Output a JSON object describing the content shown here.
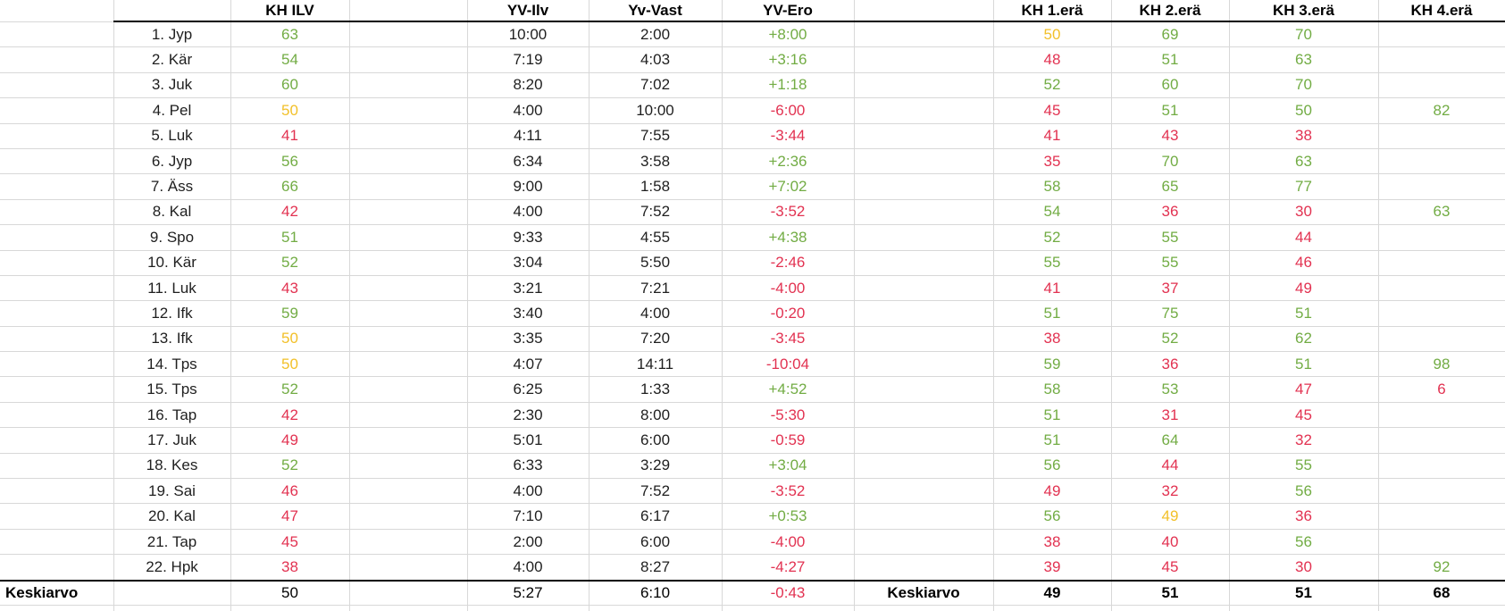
{
  "app": {
    "type": "spreadsheet-statistics-table",
    "language": "fi"
  },
  "colors": {
    "good": "#72ac44",
    "bad": "#e23251",
    "neutral": "#f2c029",
    "text": "#1f1f1f",
    "grid": "#d8d8d8",
    "border": "#000000",
    "background": "#ffffff"
  },
  "header": {
    "labels": [
      "",
      "",
      "KH ILV",
      "",
      "YV-Ilv",
      "Yv-Vast",
      "YV-Ero",
      "",
      "KH 1.erä",
      "KH 2.erä",
      "KH 3.erä",
      "KH 4.erä"
    ]
  },
  "rows": [
    {
      "name": "1. Jyp",
      "kh_ilv": {
        "v": "63",
        "c": "good"
      },
      "yv_ilv": "10:00",
      "yv_vast": "2:00",
      "yv_ero": {
        "v": "+8:00",
        "c": "good"
      },
      "era1": {
        "v": "50",
        "c": "neutral"
      },
      "era2": {
        "v": "69",
        "c": "good"
      },
      "era3": {
        "v": "70",
        "c": "good"
      },
      "era4": {
        "v": "",
        "c": ""
      }
    },
    {
      "name": "2. Kär",
      "kh_ilv": {
        "v": "54",
        "c": "good"
      },
      "yv_ilv": "7:19",
      "yv_vast": "4:03",
      "yv_ero": {
        "v": "+3:16",
        "c": "good"
      },
      "era1": {
        "v": "48",
        "c": "bad"
      },
      "era2": {
        "v": "51",
        "c": "good"
      },
      "era3": {
        "v": "63",
        "c": "good"
      },
      "era4": {
        "v": "",
        "c": ""
      }
    },
    {
      "name": "3. Juk",
      "kh_ilv": {
        "v": "60",
        "c": "good"
      },
      "yv_ilv": "8:20",
      "yv_vast": "7:02",
      "yv_ero": {
        "v": "+1:18",
        "c": "good"
      },
      "era1": {
        "v": "52",
        "c": "good"
      },
      "era2": {
        "v": "60",
        "c": "good"
      },
      "era3": {
        "v": "70",
        "c": "good"
      },
      "era4": {
        "v": "",
        "c": ""
      }
    },
    {
      "name": "4. Pel",
      "kh_ilv": {
        "v": "50",
        "c": "neutral"
      },
      "yv_ilv": "4:00",
      "yv_vast": "10:00",
      "yv_ero": {
        "v": "-6:00",
        "c": "bad"
      },
      "era1": {
        "v": "45",
        "c": "bad"
      },
      "era2": {
        "v": "51",
        "c": "good"
      },
      "era3": {
        "v": "50",
        "c": "good"
      },
      "era4": {
        "v": "82",
        "c": "good"
      }
    },
    {
      "name": "5. Luk",
      "kh_ilv": {
        "v": "41",
        "c": "bad"
      },
      "yv_ilv": "4:11",
      "yv_vast": "7:55",
      "yv_ero": {
        "v": "-3:44",
        "c": "bad"
      },
      "era1": {
        "v": "41",
        "c": "bad"
      },
      "era2": {
        "v": "43",
        "c": "bad"
      },
      "era3": {
        "v": "38",
        "c": "bad"
      },
      "era4": {
        "v": "",
        "c": ""
      }
    },
    {
      "name": "6. Jyp",
      "kh_ilv": {
        "v": "56",
        "c": "good"
      },
      "yv_ilv": "6:34",
      "yv_vast": "3:58",
      "yv_ero": {
        "v": "+2:36",
        "c": "good"
      },
      "era1": {
        "v": "35",
        "c": "bad"
      },
      "era2": {
        "v": "70",
        "c": "good"
      },
      "era3": {
        "v": "63",
        "c": "good"
      },
      "era4": {
        "v": "",
        "c": ""
      }
    },
    {
      "name": "7. Äss",
      "kh_ilv": {
        "v": "66",
        "c": "good"
      },
      "yv_ilv": "9:00",
      "yv_vast": "1:58",
      "yv_ero": {
        "v": "+7:02",
        "c": "good"
      },
      "era1": {
        "v": "58",
        "c": "good"
      },
      "era2": {
        "v": "65",
        "c": "good"
      },
      "era3": {
        "v": "77",
        "c": "good"
      },
      "era4": {
        "v": "",
        "c": ""
      }
    },
    {
      "name": "8. Kal",
      "kh_ilv": {
        "v": "42",
        "c": "bad"
      },
      "yv_ilv": "4:00",
      "yv_vast": "7:52",
      "yv_ero": {
        "v": "-3:52",
        "c": "bad"
      },
      "era1": {
        "v": "54",
        "c": "good"
      },
      "era2": {
        "v": "36",
        "c": "bad"
      },
      "era3": {
        "v": "30",
        "c": "bad"
      },
      "era4": {
        "v": "63",
        "c": "good"
      }
    },
    {
      "name": "9. Spo",
      "kh_ilv": {
        "v": "51",
        "c": "good"
      },
      "yv_ilv": "9:33",
      "yv_vast": "4:55",
      "yv_ero": {
        "v": "+4:38",
        "c": "good"
      },
      "era1": {
        "v": "52",
        "c": "good"
      },
      "era2": {
        "v": "55",
        "c": "good"
      },
      "era3": {
        "v": "44",
        "c": "bad"
      },
      "era4": {
        "v": "",
        "c": ""
      }
    },
    {
      "name": "10. Kär",
      "kh_ilv": {
        "v": "52",
        "c": "good"
      },
      "yv_ilv": "3:04",
      "yv_vast": "5:50",
      "yv_ero": {
        "v": "-2:46",
        "c": "bad"
      },
      "era1": {
        "v": "55",
        "c": "good"
      },
      "era2": {
        "v": "55",
        "c": "good"
      },
      "era3": {
        "v": "46",
        "c": "bad"
      },
      "era4": {
        "v": "",
        "c": ""
      }
    },
    {
      "name": "11. Luk",
      "kh_ilv": {
        "v": "43",
        "c": "bad"
      },
      "yv_ilv": "3:21",
      "yv_vast": "7:21",
      "yv_ero": {
        "v": "-4:00",
        "c": "bad"
      },
      "era1": {
        "v": "41",
        "c": "bad"
      },
      "era2": {
        "v": "37",
        "c": "bad"
      },
      "era3": {
        "v": "49",
        "c": "bad"
      },
      "era4": {
        "v": "",
        "c": ""
      }
    },
    {
      "name": "12. Ifk",
      "kh_ilv": {
        "v": "59",
        "c": "good"
      },
      "yv_ilv": "3:40",
      "yv_vast": "4:00",
      "yv_ero": {
        "v": "-0:20",
        "c": "bad"
      },
      "era1": {
        "v": "51",
        "c": "good"
      },
      "era2": {
        "v": "75",
        "c": "good"
      },
      "era3": {
        "v": "51",
        "c": "good"
      },
      "era4": {
        "v": "",
        "c": ""
      }
    },
    {
      "name": "13. Ifk",
      "kh_ilv": {
        "v": "50",
        "c": "neutral"
      },
      "yv_ilv": "3:35",
      "yv_vast": "7:20",
      "yv_ero": {
        "v": "-3:45",
        "c": "bad"
      },
      "era1": {
        "v": "38",
        "c": "bad"
      },
      "era2": {
        "v": "52",
        "c": "good"
      },
      "era3": {
        "v": "62",
        "c": "good"
      },
      "era4": {
        "v": "",
        "c": ""
      }
    },
    {
      "name": "14. Tps",
      "kh_ilv": {
        "v": "50",
        "c": "neutral"
      },
      "yv_ilv": "4:07",
      "yv_vast": "14:11",
      "yv_ero": {
        "v": "-10:04",
        "c": "bad"
      },
      "era1": {
        "v": "59",
        "c": "good"
      },
      "era2": {
        "v": "36",
        "c": "bad"
      },
      "era3": {
        "v": "51",
        "c": "good"
      },
      "era4": {
        "v": "98",
        "c": "good"
      }
    },
    {
      "name": "15. Tps",
      "kh_ilv": {
        "v": "52",
        "c": "good"
      },
      "yv_ilv": "6:25",
      "yv_vast": "1:33",
      "yv_ero": {
        "v": "+4:52",
        "c": "good"
      },
      "era1": {
        "v": "58",
        "c": "good"
      },
      "era2": {
        "v": "53",
        "c": "good"
      },
      "era3": {
        "v": "47",
        "c": "bad"
      },
      "era4": {
        "v": "6",
        "c": "bad"
      }
    },
    {
      "name": "16. Tap",
      "kh_ilv": {
        "v": "42",
        "c": "bad"
      },
      "yv_ilv": "2:30",
      "yv_vast": "8:00",
      "yv_ero": {
        "v": "-5:30",
        "c": "bad"
      },
      "era1": {
        "v": "51",
        "c": "good"
      },
      "era2": {
        "v": "31",
        "c": "bad"
      },
      "era3": {
        "v": "45",
        "c": "bad"
      },
      "era4": {
        "v": "",
        "c": ""
      }
    },
    {
      "name": "17. Juk",
      "kh_ilv": {
        "v": "49",
        "c": "bad"
      },
      "yv_ilv": "5:01",
      "yv_vast": "6:00",
      "yv_ero": {
        "v": "-0:59",
        "c": "bad"
      },
      "era1": {
        "v": "51",
        "c": "good"
      },
      "era2": {
        "v": "64",
        "c": "good"
      },
      "era3": {
        "v": "32",
        "c": "bad"
      },
      "era4": {
        "v": "",
        "c": ""
      }
    },
    {
      "name": "18. Kes",
      "kh_ilv": {
        "v": "52",
        "c": "good"
      },
      "yv_ilv": "6:33",
      "yv_vast": "3:29",
      "yv_ero": {
        "v": "+3:04",
        "c": "good"
      },
      "era1": {
        "v": "56",
        "c": "good"
      },
      "era2": {
        "v": "44",
        "c": "bad"
      },
      "era3": {
        "v": "55",
        "c": "good"
      },
      "era4": {
        "v": "",
        "c": ""
      }
    },
    {
      "name": "19. Sai",
      "kh_ilv": {
        "v": "46",
        "c": "bad"
      },
      "yv_ilv": "4:00",
      "yv_vast": "7:52",
      "yv_ero": {
        "v": "-3:52",
        "c": "bad"
      },
      "era1": {
        "v": "49",
        "c": "bad"
      },
      "era2": {
        "v": "32",
        "c": "bad"
      },
      "era3": {
        "v": "56",
        "c": "good"
      },
      "era4": {
        "v": "",
        "c": ""
      }
    },
    {
      "name": "20. Kal",
      "kh_ilv": {
        "v": "47",
        "c": "bad"
      },
      "yv_ilv": "7:10",
      "yv_vast": "6:17",
      "yv_ero": {
        "v": "+0:53",
        "c": "good"
      },
      "era1": {
        "v": "56",
        "c": "good"
      },
      "era2": {
        "v": "49",
        "c": "neutral"
      },
      "era3": {
        "v": "36",
        "c": "bad"
      },
      "era4": {
        "v": "",
        "c": ""
      }
    },
    {
      "name": "21. Tap",
      "kh_ilv": {
        "v": "45",
        "c": "bad"
      },
      "yv_ilv": "2:00",
      "yv_vast": "6:00",
      "yv_ero": {
        "v": "-4:00",
        "c": "bad"
      },
      "era1": {
        "v": "38",
        "c": "bad"
      },
      "era2": {
        "v": "40",
        "c": "bad"
      },
      "era3": {
        "v": "56",
        "c": "good"
      },
      "era4": {
        "v": "",
        "c": ""
      }
    },
    {
      "name": "22. Hpk",
      "kh_ilv": {
        "v": "38",
        "c": "bad"
      },
      "yv_ilv": "4:00",
      "yv_vast": "8:27",
      "yv_ero": {
        "v": "-4:27",
        "c": "bad"
      },
      "era1": {
        "v": "39",
        "c": "bad"
      },
      "era2": {
        "v": "45",
        "c": "bad"
      },
      "era3": {
        "v": "30",
        "c": "bad"
      },
      "era4": {
        "v": "92",
        "c": "good"
      }
    }
  ],
  "footer": {
    "label_left": "Keskiarvo",
    "kh_ilv": "50",
    "yv_ilv": "5:27",
    "yv_vast": "6:10",
    "yv_ero": {
      "v": "-0:43",
      "c": "bad"
    },
    "label_right": "Keskiarvo",
    "era1": "49",
    "era2": "51",
    "era3": "51",
    "era4": "68"
  }
}
